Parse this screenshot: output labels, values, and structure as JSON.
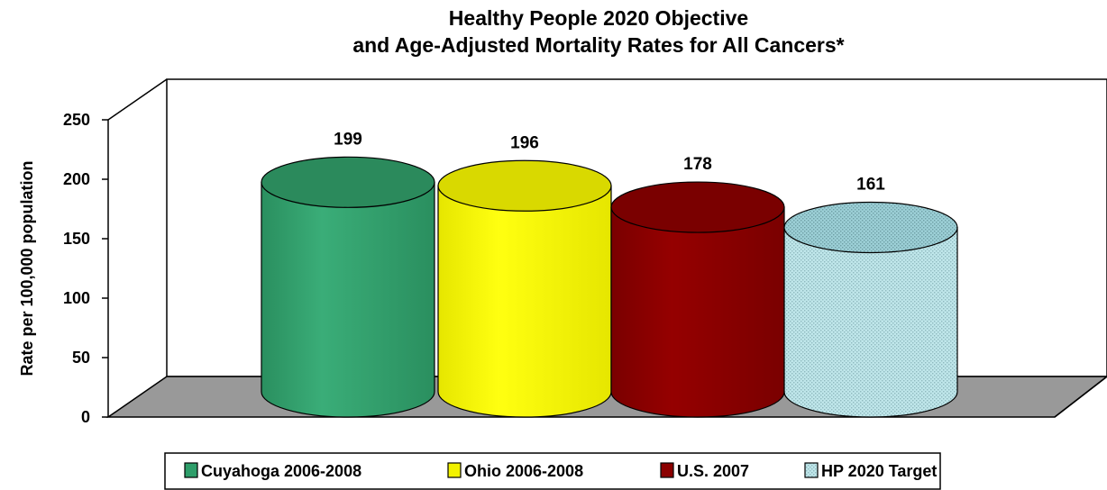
{
  "chart_data": {
    "type": "bar",
    "style": "3d-cylinder",
    "title": [
      "Healthy People 2020 Objective",
      "and Age-Adjusted Mortality Rates for All Cancers*"
    ],
    "ylabel": "Rate per 100,000 population",
    "xlabel": "",
    "ylim": [
      0,
      250
    ],
    "yticks": [
      "0",
      "50",
      "100",
      "150",
      "200",
      "250"
    ],
    "categories": [
      "Cuyahoga 2006-2008",
      "Ohio 2006-2008",
      "U.S. 2007",
      "HP 2020 Target"
    ],
    "values": [
      199,
      196,
      178,
      161
    ],
    "data_labels": [
      "199",
      "196",
      "178",
      "161"
    ],
    "colors": [
      "#2E9E6A",
      "#F2F200",
      "#8B0000",
      "#BFE6EA"
    ],
    "legend": {
      "placement": "bottom",
      "entries": [
        "Cuyahoga 2006-2008",
        "Ohio 2006-2008",
        "U.S. 2007",
        "HP 2020 Target"
      ]
    },
    "grid": false,
    "floor_color": "#999999"
  }
}
